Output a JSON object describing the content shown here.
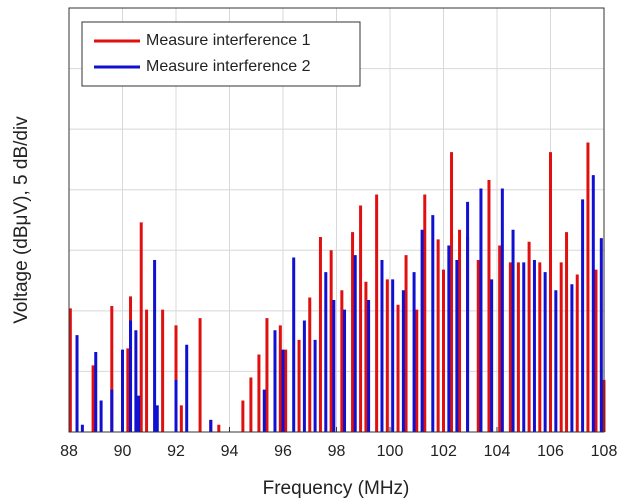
{
  "chart_data": {
    "type": "spike",
    "x_label": "Frequency (MHz)",
    "y_label": "Voltage (dBμV), 5 dB/div",
    "xlim": [
      88,
      108
    ],
    "xticks": [
      88,
      90,
      92,
      94,
      96,
      98,
      100,
      102,
      104,
      106,
      108
    ],
    "ylim": [
      0,
      35
    ],
    "yticks": [
      0,
      5,
      10,
      15,
      20,
      25,
      30,
      35
    ],
    "grid": true,
    "legend": "top-left",
    "series": [
      {
        "name": "Measure interference 1",
        "color": "#e01010",
        "x": [
          88.05,
          88.9,
          89.6,
          90.2,
          90.3,
          90.7,
          90.9,
          91.5,
          92.0,
          92.2,
          92.9,
          93.3,
          93.6,
          94.5,
          94.8,
          95.1,
          95.4,
          95.9,
          96.1,
          96.6,
          97.0,
          97.4,
          97.8,
          98.2,
          98.6,
          98.9,
          99.1,
          99.5,
          99.9,
          100.3,
          100.6,
          101.0,
          101.3,
          101.8,
          102.0,
          102.3,
          102.6,
          102.9,
          103.3,
          103.7,
          104.1,
          104.5,
          104.8,
          105.2,
          105.6,
          106.0,
          106.4,
          106.6,
          107.0,
          107.4,
          107.7,
          108.0
        ],
        "values": [
          10.2,
          5.5,
          10.4,
          6.9,
          11.2,
          17.3,
          10.1,
          10.1,
          8.8,
          2.2,
          9.4,
          1.0,
          0.6,
          2.6,
          4.5,
          6.4,
          9.4,
          8.8,
          6.8,
          7.6,
          11.1,
          16.1,
          15.0,
          11.7,
          16.5,
          18.7,
          12.4,
          19.6,
          12.6,
          10.5,
          14.6,
          10.1,
          19.6,
          15.9,
          13.4,
          23.1,
          16.7,
          16.1,
          14.2,
          20.8,
          15.4,
          14.0,
          14.0,
          15.7,
          14.0,
          23.1,
          14.0,
          16.5,
          13.0,
          23.9,
          13.4,
          4.3
        ]
      },
      {
        "name": "Measure interference 2",
        "color": "#1010d0",
        "x": [
          88.3,
          88.5,
          89.0,
          89.2,
          89.6,
          90.0,
          90.3,
          90.5,
          90.6,
          91.2,
          91.3,
          92.0,
          92.4,
          93.3,
          95.3,
          95.7,
          96.0,
          96.4,
          96.8,
          97.2,
          97.6,
          97.9,
          98.3,
          98.7,
          99.2,
          99.7,
          100.1,
          100.5,
          100.9,
          101.2,
          101.6,
          102.2,
          102.5,
          102.9,
          103.4,
          103.8,
          104.2,
          104.6,
          105.0,
          105.4,
          105.8,
          106.2,
          106.8,
          107.2,
          107.6,
          107.9
        ],
        "values": [
          8.0,
          0.6,
          6.6,
          2.6,
          3.5,
          6.8,
          9.2,
          8.4,
          3.0,
          14.2,
          2.2,
          4.3,
          7.2,
          1.0,
          3.5,
          8.4,
          6.8,
          14.4,
          9.2,
          7.6,
          13.2,
          10.9,
          10.1,
          14.6,
          10.9,
          14.2,
          12.6,
          11.7,
          13.2,
          16.7,
          17.9,
          15.4,
          14.2,
          19.0,
          20.1,
          12.6,
          20.1,
          16.7,
          14.0,
          14.2,
          13.2,
          11.7,
          12.2,
          19.2,
          21.2,
          16.0
        ]
      }
    ]
  }
}
